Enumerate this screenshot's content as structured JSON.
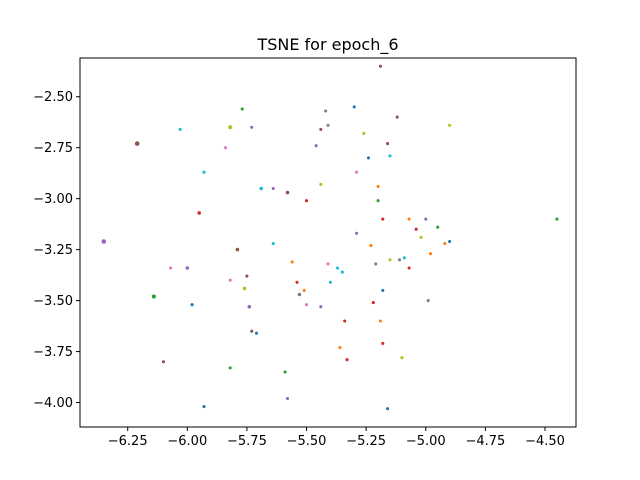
{
  "chart_data": {
    "type": "scatter",
    "title": "TSNE for epoch_6",
    "xlabel": "",
    "ylabel": "",
    "xlim": [
      -6.45,
      -4.37
    ],
    "ylim": [
      -4.12,
      -2.31
    ],
    "xticks": [
      -6.25,
      -6.0,
      -5.75,
      -5.5,
      -5.25,
      -5.0,
      -4.75,
      -4.5
    ],
    "xtick_labels": [
      "−6.25",
      "−6.00",
      "−5.75",
      "−5.50",
      "−5.25",
      "−5.00",
      "−4.75",
      "−4.50"
    ],
    "yticks": [
      -2.5,
      -2.75,
      -3.0,
      -3.25,
      -3.5,
      -3.75,
      -4.0
    ],
    "ytick_labels": [
      "−2.50",
      "−2.75",
      "−3.00",
      "−3.25",
      "−3.50",
      "−3.75",
      "−4.00"
    ],
    "grid": false,
    "legend": "none",
    "points": [
      {
        "x": -6.35,
        "y": -3.21,
        "color": "#9467bd",
        "size": 4
      },
      {
        "x": -6.21,
        "y": -2.73,
        "color": "#8c564b",
        "size": 4
      },
      {
        "x": -6.14,
        "y": -3.48,
        "color": "#2ca02c",
        "size": 3.5
      },
      {
        "x": -6.1,
        "y": -3.8,
        "color": "#8c564b",
        "size": 2.5
      },
      {
        "x": -6.07,
        "y": -3.34,
        "color": "#e377c2",
        "size": 2.5
      },
      {
        "x": -6.03,
        "y": -2.66,
        "color": "#17becf",
        "size": 2.5
      },
      {
        "x": -6.0,
        "y": -3.34,
        "color": "#9467bd",
        "size": 3
      },
      {
        "x": -5.98,
        "y": -3.52,
        "color": "#1f77b4",
        "size": 2.5
      },
      {
        "x": -5.95,
        "y": -3.07,
        "color": "#d62728",
        "size": 3
      },
      {
        "x": -5.93,
        "y": -2.87,
        "color": "#17becf",
        "size": 2.5
      },
      {
        "x": -5.93,
        "y": -4.02,
        "color": "#1f77b4",
        "size": 2.5
      },
      {
        "x": -5.84,
        "y": -2.75,
        "color": "#e377c2",
        "size": 2.5
      },
      {
        "x": -5.82,
        "y": -2.65,
        "color": "#bcbd22",
        "size": 3.5
      },
      {
        "x": -5.82,
        "y": -3.4,
        "color": "#e377c2",
        "size": 2.5
      },
      {
        "x": -5.82,
        "y": -3.83,
        "color": "#2ca02c",
        "size": 2.5
      },
      {
        "x": -5.79,
        "y": -3.25,
        "color": "#8c564b",
        "size": 3
      },
      {
        "x": -5.77,
        "y": -2.56,
        "color": "#2ca02c",
        "size": 2.5
      },
      {
        "x": -5.76,
        "y": -3.44,
        "color": "#bcbd22",
        "size": 3
      },
      {
        "x": -5.75,
        "y": -3.38,
        "color": "#8c564b",
        "size": 2.5
      },
      {
        "x": -5.74,
        "y": -3.53,
        "color": "#9467bd",
        "size": 3
      },
      {
        "x": -5.73,
        "y": -2.65,
        "color": "#9467bd",
        "size": 2.5
      },
      {
        "x": -5.73,
        "y": -3.65,
        "color": "#8c564b",
        "size": 2.5
      },
      {
        "x": -5.71,
        "y": -3.66,
        "color": "#1f77b4",
        "size": 2.5
      },
      {
        "x": -5.69,
        "y": -2.95,
        "color": "#17becf",
        "size": 3
      },
      {
        "x": -5.64,
        "y": -2.95,
        "color": "#9467bd",
        "size": 2.5
      },
      {
        "x": -5.64,
        "y": -3.22,
        "color": "#17becf",
        "size": 2.5
      },
      {
        "x": -5.59,
        "y": -3.85,
        "color": "#2ca02c",
        "size": 2.5
      },
      {
        "x": -5.58,
        "y": -2.97,
        "color": "#8c564b",
        "size": 3
      },
      {
        "x": -5.58,
        "y": -3.98,
        "color": "#9467bd",
        "size": 2.5
      },
      {
        "x": -5.56,
        "y": -3.31,
        "color": "#ff7f0e",
        "size": 2.5
      },
      {
        "x": -5.54,
        "y": -3.41,
        "color": "#d62728",
        "size": 2.5
      },
      {
        "x": -5.53,
        "y": -3.47,
        "color": "#7f7f7f",
        "size": 3
      },
      {
        "x": -5.51,
        "y": -3.45,
        "color": "#ff7f0e",
        "size": 2.5
      },
      {
        "x": -5.5,
        "y": -3.01,
        "color": "#d62728",
        "size": 2.5
      },
      {
        "x": -5.5,
        "y": -3.52,
        "color": "#e377c2",
        "size": 2.5
      },
      {
        "x": -5.46,
        "y": -2.74,
        "color": "#9467bd",
        "size": 2.5
      },
      {
        "x": -5.44,
        "y": -2.93,
        "color": "#bcbd22",
        "size": 2.5
      },
      {
        "x": -5.44,
        "y": -2.66,
        "color": "#8c564b",
        "size": 2.5
      },
      {
        "x": -5.44,
        "y": -3.53,
        "color": "#9467bd",
        "size": 2.5
      },
      {
        "x": -5.42,
        "y": -2.57,
        "color": "#7f7f7f",
        "size": 2.5
      },
      {
        "x": -5.41,
        "y": -2.64,
        "color": "#7f7f7f",
        "size": 2.5
      },
      {
        "x": -5.41,
        "y": -3.32,
        "color": "#e377c2",
        "size": 2.5
      },
      {
        "x": -5.4,
        "y": -3.41,
        "color": "#17becf",
        "size": 2.5
      },
      {
        "x": -5.37,
        "y": -3.34,
        "color": "#17becf",
        "size": 2.5
      },
      {
        "x": -5.36,
        "y": -3.73,
        "color": "#ff7f0e",
        "size": 2.5
      },
      {
        "x": -5.35,
        "y": -3.36,
        "color": "#17becf",
        "size": 2.5
      },
      {
        "x": -5.34,
        "y": -3.6,
        "color": "#d62728",
        "size": 2.5
      },
      {
        "x": -5.33,
        "y": -3.79,
        "color": "#d62728",
        "size": 2.5
      },
      {
        "x": -5.3,
        "y": -2.55,
        "color": "#1f77b4",
        "size": 2.5
      },
      {
        "x": -5.29,
        "y": -2.87,
        "color": "#e377c2",
        "size": 2.5
      },
      {
        "x": -5.29,
        "y": -3.17,
        "color": "#9467bd",
        "size": 2.5
      },
      {
        "x": -5.26,
        "y": -2.68,
        "color": "#bcbd22",
        "size": 2.5
      },
      {
        "x": -5.24,
        "y": -2.8,
        "color": "#1f77b4",
        "size": 2.5
      },
      {
        "x": -5.23,
        "y": -3.23,
        "color": "#ff7f0e",
        "size": 2.5
      },
      {
        "x": -5.22,
        "y": -3.51,
        "color": "#d62728",
        "size": 2.5
      },
      {
        "x": -5.21,
        "y": -3.32,
        "color": "#7f7f7f",
        "size": 2.5
      },
      {
        "x": -5.2,
        "y": -3.01,
        "color": "#2ca02c",
        "size": 2.5
      },
      {
        "x": -5.2,
        "y": -2.94,
        "color": "#ff7f0e",
        "size": 2.5
      },
      {
        "x": -5.19,
        "y": -2.35,
        "color": "#8c564b",
        "size": 2.5
      },
      {
        "x": -5.19,
        "y": -3.6,
        "color": "#ff7f0e",
        "size": 2.5
      },
      {
        "x": -5.18,
        "y": -3.45,
        "color": "#1f77b4",
        "size": 2.5
      },
      {
        "x": -5.18,
        "y": -3.71,
        "color": "#d62728",
        "size": 2.5
      },
      {
        "x": -5.18,
        "y": -3.1,
        "color": "#d62728",
        "size": 2.5
      },
      {
        "x": -5.16,
        "y": -2.73,
        "color": "#8c564b",
        "size": 2.5
      },
      {
        "x": -5.15,
        "y": -2.79,
        "color": "#17becf",
        "size": 2.5
      },
      {
        "x": -5.15,
        "y": -3.3,
        "color": "#bcbd22",
        "size": 2.5
      },
      {
        "x": -5.16,
        "y": -4.03,
        "color": "#1f77b4",
        "size": 2.5
      },
      {
        "x": -5.12,
        "y": -2.6,
        "color": "#8c564b",
        "size": 2.5
      },
      {
        "x": -5.11,
        "y": -3.3,
        "color": "#7f7f7f",
        "size": 2.5
      },
      {
        "x": -5.1,
        "y": -3.78,
        "color": "#bcbd22",
        "size": 2.5
      },
      {
        "x": -5.09,
        "y": -3.29,
        "color": "#17becf",
        "size": 2.5
      },
      {
        "x": -5.07,
        "y": -3.1,
        "color": "#ff7f0e",
        "size": 2.5
      },
      {
        "x": -5.07,
        "y": -3.34,
        "color": "#d62728",
        "size": 2.5
      },
      {
        "x": -5.04,
        "y": -3.15,
        "color": "#d62728",
        "size": 2.5
      },
      {
        "x": -5.02,
        "y": -3.19,
        "color": "#bcbd22",
        "size": 2.5
      },
      {
        "x": -5.0,
        "y": -3.1,
        "color": "#9467bd",
        "size": 2.5
      },
      {
        "x": -4.99,
        "y": -3.5,
        "color": "#7f7f7f",
        "size": 2.5
      },
      {
        "x": -4.98,
        "y": -3.27,
        "color": "#ff7f0e",
        "size": 2.5
      },
      {
        "x": -4.95,
        "y": -3.14,
        "color": "#2ca02c",
        "size": 2.5
      },
      {
        "x": -4.92,
        "y": -3.22,
        "color": "#ff7f0e",
        "size": 2.5
      },
      {
        "x": -4.9,
        "y": -3.21,
        "color": "#1f77b4",
        "size": 2.5
      },
      {
        "x": -4.9,
        "y": -2.64,
        "color": "#bcbd22",
        "size": 2.5
      },
      {
        "x": -4.45,
        "y": -3.1,
        "color": "#2ca02c",
        "size": 2.5
      }
    ]
  }
}
